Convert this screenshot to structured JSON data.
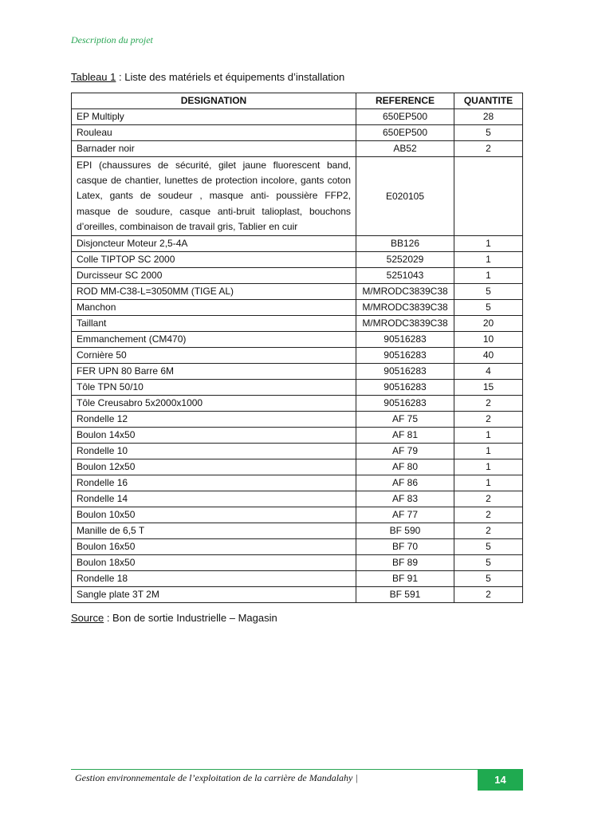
{
  "header": "Description du projet",
  "caption": {
    "label": "Tableau 1",
    "text": " : Liste des matériels et équipements d’installation"
  },
  "table": {
    "columns": [
      "DESIGNATION",
      "REFERENCE",
      "QUANTITE"
    ],
    "rows": [
      [
        "EP Multiply",
        "650EP500",
        "28"
      ],
      [
        "Rouleau",
        "650EP500",
        "5"
      ],
      [
        "Barnader noir",
        "AB52",
        "2"
      ],
      [
        "EPI  (chaussures de sécurité, gilet jaune fluorescent band, casque de chantier, lunettes de protection incolore, gants coton Latex, gants de soudeur , masque anti- poussière FFP2, masque de soudure, casque anti-bruit talioplast, bouchons d’oreilles, combinaison de travail gris, Tablier en cuir",
        "E020105",
        ""
      ],
      [
        "Disjoncteur Moteur 2,5-4A",
        "BB126",
        "1"
      ],
      [
        "Colle TIPTOP SC 2000",
        "5252029",
        "1"
      ],
      [
        "Durcisseur SC 2000",
        "5251043",
        "1"
      ],
      [
        "ROD MM-C38-L=3050MM (TIGE AL)",
        "M/MRODC3839C38",
        "5"
      ],
      [
        "Manchon",
        "M/MRODC3839C38",
        "5"
      ],
      [
        "Taillant",
        "M/MRODC3839C38",
        "20"
      ],
      [
        "Emmanchement (CM470)",
        "90516283",
        "10"
      ],
      [
        "Cornière 50",
        "90516283",
        "40"
      ],
      [
        "FER UPN 80 Barre 6M",
        "90516283",
        "4"
      ],
      [
        "Tôle TPN 50/10",
        "90516283",
        "15"
      ],
      [
        "Tôle Creusabro 5x2000x1000",
        "90516283",
        "2"
      ],
      [
        "Rondelle 12",
        "AF 75",
        "2"
      ],
      [
        "Boulon 14x50",
        "AF 81",
        "1"
      ],
      [
        "Rondelle 10",
        "AF 79",
        "1"
      ],
      [
        "Boulon 12x50",
        "AF 80",
        "1"
      ],
      [
        "Rondelle 16",
        "AF 86",
        "1"
      ],
      [
        "Rondelle 14",
        "AF 83",
        "2"
      ],
      [
        "Boulon 10x50",
        "AF 77",
        "2"
      ],
      [
        "Manille de 6,5 T",
        "BF 590",
        "2"
      ],
      [
        "Boulon 16x50",
        "BF 70",
        "5"
      ],
      [
        "Boulon 18x50",
        "BF 89",
        "5"
      ],
      [
        "Rondelle 18",
        "BF 91",
        "5"
      ],
      [
        "Sangle plate 3T 2M",
        "BF 591",
        "2"
      ]
    ]
  },
  "source": {
    "label": "Source",
    "text": " : Bon de sortie Industrielle – Magasin"
  },
  "footer": {
    "text": "Gestion environnementale de l’exploitation de la carrière de Mandalahy |",
    "page": "14"
  },
  "colors": {
    "accent": "#1faa50"
  }
}
